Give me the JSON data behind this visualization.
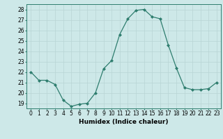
{
  "x": [
    0,
    1,
    2,
    3,
    4,
    5,
    6,
    7,
    8,
    9,
    10,
    11,
    12,
    13,
    14,
    15,
    16,
    17,
    18,
    19,
    20,
    21,
    22,
    23
  ],
  "y": [
    22,
    21.2,
    21.2,
    20.8,
    19.3,
    18.7,
    18.9,
    19.0,
    20.0,
    22.3,
    23.1,
    25.6,
    27.1,
    27.9,
    28.0,
    27.3,
    27.1,
    24.6,
    22.4,
    20.5,
    20.3,
    20.3,
    20.4,
    21.0
  ],
  "title": "",
  "xlabel": "Humidex (Indice chaleur)",
  "ylabel": "",
  "xlim": [
    -0.5,
    23.5
  ],
  "ylim": [
    18.5,
    28.5
  ],
  "yticks": [
    19,
    20,
    21,
    22,
    23,
    24,
    25,
    26,
    27,
    28
  ],
  "xticks": [
    0,
    1,
    2,
    3,
    4,
    5,
    6,
    7,
    8,
    9,
    10,
    11,
    12,
    13,
    14,
    15,
    16,
    17,
    18,
    19,
    20,
    21,
    22,
    23
  ],
  "line_color": "#2e7d6e",
  "marker": "D",
  "marker_size": 2.0,
  "bg_color": "#cde8e8",
  "grid_color": "#b8d4d4",
  "label_fontsize": 6.5,
  "tick_fontsize": 5.5
}
